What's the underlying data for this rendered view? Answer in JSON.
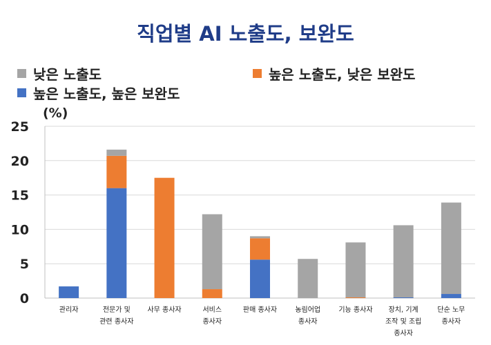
{
  "chart_data": {
    "type": "bar",
    "stacked": true,
    "title": "직업별 AI 노출도, 보완도",
    "ylabel": "(%)",
    "ylim": [
      0,
      25
    ],
    "yticks": [
      0,
      5,
      10,
      15,
      20,
      25
    ],
    "grid": true,
    "legend_placement": "top",
    "categories": [
      [
        "관리자"
      ],
      [
        "전문가 및",
        "관련 종사자"
      ],
      [
        "사무 종사자"
      ],
      [
        "서비스",
        "종사자"
      ],
      [
        "판매 종사자"
      ],
      [
        "농림어업",
        "종사자"
      ],
      [
        "기능 종사자"
      ],
      [
        "장치, 기계",
        "조작 및 조립",
        "종사자"
      ],
      [
        "단순 노무",
        "종사자"
      ]
    ],
    "series": [
      {
        "name": "높은 노출도, 높은 보완도",
        "color": "#4472c4",
        "values": [
          1.7,
          16.0,
          0.0,
          0.0,
          5.6,
          0.0,
          0.0,
          0.1,
          0.6
        ]
      },
      {
        "name": "높은 노출도, 낮은 보완도",
        "color": "#ed7d31",
        "values": [
          0.0,
          4.7,
          17.5,
          1.3,
          3.1,
          0.0,
          0.1,
          0.0,
          0.0
        ]
      },
      {
        "name": "낮은 노출도",
        "color": "#a5a5a5",
        "values": [
          0.0,
          0.9,
          0.0,
          10.9,
          0.3,
          5.7,
          8.0,
          10.5,
          13.3
        ]
      }
    ]
  }
}
